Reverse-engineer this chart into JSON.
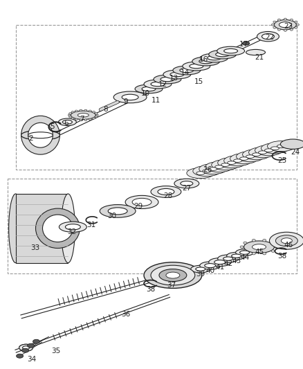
{
  "bg_color": "#ffffff",
  "lc": "#222222",
  "gray1": "#d8d8d8",
  "gray2": "#e8e8e8",
  "gray3": "#b8b8b8",
  "gray4": "#f0f0f0",
  "dark": "#555555",
  "figsize": [
    4.39,
    5.33
  ],
  "dpi": 100,
  "label_fs": 7.5
}
